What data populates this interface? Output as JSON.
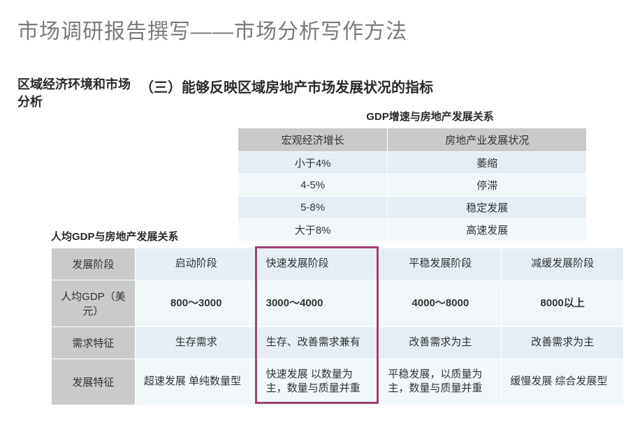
{
  "page_title": "市场调研报告撰写——市场分析写作方法",
  "left_label": "区域经济环境和市场分析",
  "section_heading": "（三）能够反映区域房地产市场发展状况的指标",
  "table1": {
    "title": "GDP增速与房地产发展关系",
    "columns": [
      "宏观经济增长",
      "房地产业发展状况"
    ],
    "rows": [
      [
        "小于4%",
        "萎缩"
      ],
      [
        "4-5%",
        "停滞"
      ],
      [
        "5-8%",
        "稳定发展"
      ],
      [
        "大于8%",
        "高速发展"
      ]
    ],
    "header_bg": "#cacaca",
    "row_colors": [
      "#e4eef4",
      "#f2f7fa"
    ]
  },
  "table2": {
    "title": "人均GDP与房地产发展关系",
    "row_headers": [
      "发展阶段",
      "人均GDP（美元）",
      "需求特征",
      "发展特征"
    ],
    "rows": [
      [
        "启动阶段",
        "快速发展阶段",
        "平稳发展阶段",
        "减缓发展阶段"
      ],
      [
        "800～3000",
        "3000～4000",
        "4000～8000",
        "8000以上"
      ],
      [
        "生存需求",
        "生存、改善需求兼有",
        "改善需求为主",
        "改善需求为主"
      ],
      [
        "超速发展\n单纯数量型",
        "快速发展\n以数量为主，数量与质量并重",
        "平稳发展，以质量为主，数量与质量并重",
        "缓慢发展\n综合发展型"
      ]
    ],
    "highlight_column_index": 1,
    "highlight_color": "#a04070"
  }
}
